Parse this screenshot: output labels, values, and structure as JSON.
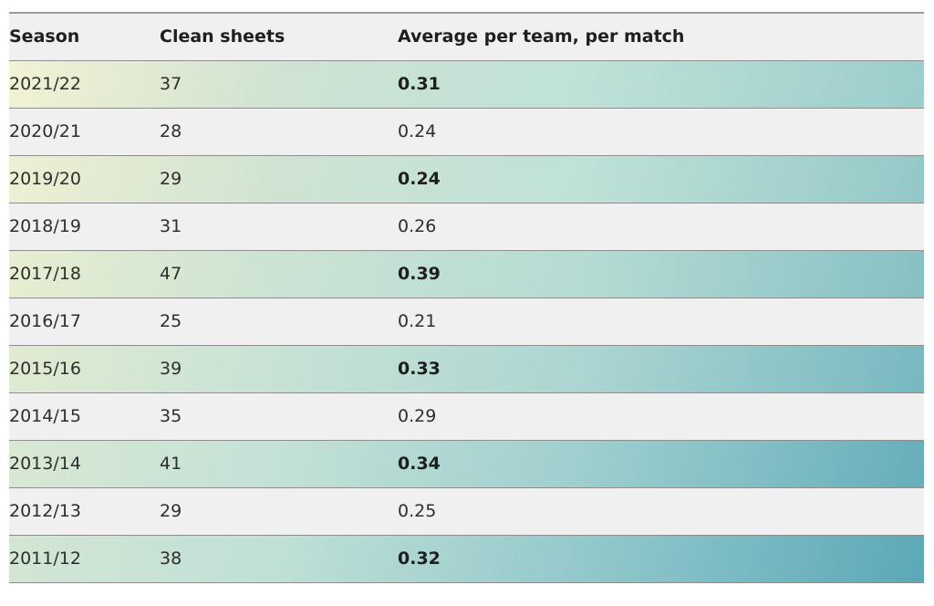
{
  "table": {
    "headers": [
      "Season",
      "Clean sheets",
      "Average per team, per match"
    ],
    "rows": [
      {
        "season": "2021/22",
        "clean_sheets": "37",
        "average": "0.31",
        "highlighted": true,
        "gradient": [
          "#f3f2d4",
          "#cfe3d2",
          "#bfe2d8",
          "#9acdcb"
        ]
      },
      {
        "season": "2020/21",
        "clean_sheets": "28",
        "average": "0.24",
        "highlighted": false,
        "gradient": null
      },
      {
        "season": "2019/20",
        "clean_sheets": "29",
        "average": "0.24",
        "highlighted": true,
        "gradient": [
          "#eef0d3",
          "#cfe3d2",
          "#bfe2d8",
          "#93c8c8"
        ]
      },
      {
        "season": "2018/19",
        "clean_sheets": "31",
        "average": "0.26",
        "highlighted": false,
        "gradient": null
      },
      {
        "season": "2017/18",
        "clean_sheets": "47",
        "average": "0.39",
        "highlighted": true,
        "gradient": [
          "#e8eed1",
          "#cbe3d3",
          "#b6dcd4",
          "#86c0c4"
        ]
      },
      {
        "season": "2016/17",
        "clean_sheets": "25",
        "average": "0.21",
        "highlighted": false,
        "gradient": null
      },
      {
        "season": "2015/16",
        "clean_sheets": "39",
        "average": "0.33",
        "highlighted": true,
        "gradient": [
          "#e1ebd2",
          "#c7e2d5",
          "#acd6d2",
          "#78b8c0"
        ]
      },
      {
        "season": "2014/15",
        "clean_sheets": "35",
        "average": "0.29",
        "highlighted": false,
        "gradient": null
      },
      {
        "season": "2013/14",
        "clean_sheets": "41",
        "average": "0.34",
        "highlighted": true,
        "gradient": [
          "#d9e8d3",
          "#c3e1d6",
          "#9fcfcf",
          "#66aeba"
        ]
      },
      {
        "season": "2012/13",
        "clean_sheets": "29",
        "average": "0.25",
        "highlighted": false,
        "gradient": null
      },
      {
        "season": "2011/12",
        "clean_sheets": "38",
        "average": "0.32",
        "highlighted": true,
        "gradient": [
          "#d3e6d3",
          "#bfe0d7",
          "#94c9cc",
          "#5ba8b7"
        ]
      }
    ]
  }
}
